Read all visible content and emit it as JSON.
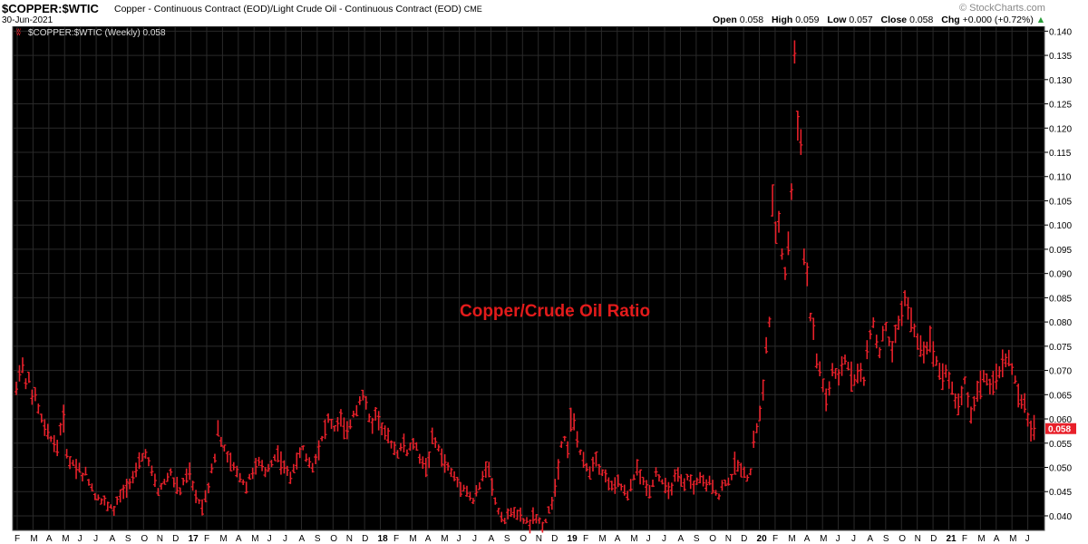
{
  "header": {
    "symbol": "$COPPER:$WTIC",
    "description": "Copper - Continuous Contract (EOD)/Light Crude Oil - Continuous Contract (EOD)",
    "exchange": "CME",
    "date": "30-Jun-2021",
    "copyright": "© StockCharts.com",
    "ohlc": {
      "open_label": "Open",
      "open": "0.058",
      "high_label": "High",
      "high": "0.059",
      "low_label": "Low",
      "low": "0.057",
      "close_label": "Close",
      "close": "0.058",
      "chg_label": "Chg",
      "chg": "+0.000 (+0.72%)"
    }
  },
  "legend": {
    "text": "$COPPER:$WTIC (Weekly) 0.058"
  },
  "colors": {
    "background": "#000000",
    "bars": "#e8202a",
    "grid": "#2a2a2a",
    "axis_text": "#000000",
    "price_tag": "#e8202a"
  },
  "chart_data": {
    "type": "ohlc",
    "title": "",
    "annotation": "Copper/Crude Oil Ratio",
    "timeframe": "Weekly",
    "ylim": [
      0.037,
      0.141
    ],
    "y_ticks": [
      "0.040",
      "0.045",
      "0.050",
      "0.055",
      "0.060",
      "0.065",
      "0.070",
      "0.075",
      "0.080",
      "0.085",
      "0.090",
      "0.095",
      "0.100",
      "0.105",
      "0.110",
      "0.115",
      "0.120",
      "0.125",
      "0.130",
      "0.135",
      "0.140"
    ],
    "x_ticks": [
      "F",
      "M",
      "A",
      "M",
      "J",
      "J",
      "A",
      "S",
      "O",
      "N",
      "D",
      "17",
      "F",
      "M",
      "A",
      "M",
      "J",
      "J",
      "A",
      "S",
      "O",
      "N",
      "D",
      "18",
      "F",
      "M",
      "A",
      "M",
      "J",
      "J",
      "A",
      "S",
      "O",
      "N",
      "D",
      "19",
      "F",
      "M",
      "A",
      "M",
      "J",
      "J",
      "A",
      "S",
      "O",
      "N",
      "D",
      "20",
      "F",
      "M",
      "A",
      "M",
      "J",
      "J",
      "A",
      "S",
      "O",
      "N",
      "D",
      "21",
      "F",
      "M",
      "A",
      "M",
      "J"
    ],
    "year_ticks": [
      "17",
      "18",
      "19",
      "20",
      "21"
    ],
    "x_start": "2016-02",
    "last_value": "0.058",
    "anchors": [
      [
        0.066,
        0.07
      ],
      [
        0.071,
        0.067
      ],
      [
        0.069,
        0.064
      ],
      [
        0.065,
        0.062
      ],
      [
        0.06,
        0.058
      ],
      [
        0.057,
        0.056
      ],
      [
        0.055,
        0.054
      ],
      [
        0.058,
        0.06
      ],
      [
        0.053,
        0.051
      ],
      [
        0.051,
        0.05
      ],
      [
        0.05,
        0.048
      ],
      [
        0.049,
        0.047
      ],
      [
        0.046,
        0.044
      ],
      [
        0.044,
        0.043
      ],
      [
        0.043,
        0.042
      ],
      [
        0.042,
        0.041
      ],
      [
        0.043,
        0.044
      ],
      [
        0.045,
        0.046
      ],
      [
        0.047,
        0.048
      ],
      [
        0.049,
        0.051
      ],
      [
        0.052,
        0.053
      ],
      [
        0.051,
        0.049
      ],
      [
        0.047,
        0.045
      ],
      [
        0.046,
        0.047
      ],
      [
        0.048,
        0.049
      ],
      [
        0.047,
        0.046
      ],
      [
        0.045,
        0.047
      ],
      [
        0.048,
        0.049
      ],
      [
        0.046,
        0.044
      ],
      [
        0.043,
        0.042
      ],
      [
        0.044,
        0.046
      ],
      [
        0.05,
        0.052
      ],
      [
        0.058,
        0.055
      ],
      [
        0.054,
        0.052
      ],
      [
        0.051,
        0.05
      ],
      [
        0.049,
        0.048
      ],
      [
        0.047,
        0.046
      ],
      [
        0.048,
        0.049
      ],
      [
        0.05,
        0.051
      ],
      [
        0.05,
        0.049
      ],
      [
        0.05,
        0.051
      ],
      [
        0.052,
        0.053
      ],
      [
        0.051,
        0.05
      ],
      [
        0.049,
        0.048
      ],
      [
        0.05,
        0.051
      ],
      [
        0.053,
        0.054
      ],
      [
        0.052,
        0.051
      ],
      [
        0.05,
        0.052
      ],
      [
        0.054,
        0.056
      ],
      [
        0.058,
        0.06
      ],
      [
        0.059,
        0.058
      ],
      [
        0.059,
        0.06
      ],
      [
        0.058,
        0.057
      ],
      [
        0.059,
        0.061
      ],
      [
        0.062,
        0.064
      ],
      [
        0.065,
        0.063
      ],
      [
        0.06,
        0.059
      ],
      [
        0.061,
        0.06
      ],
      [
        0.058,
        0.057
      ],
      [
        0.056,
        0.055
      ],
      [
        0.054,
        0.053
      ],
      [
        0.054,
        0.055
      ],
      [
        0.053,
        0.054
      ],
      [
        0.055,
        0.054
      ],
      [
        0.052,
        0.051
      ],
      [
        0.05,
        0.052
      ],
      [
        0.056,
        0.055
      ],
      [
        0.054,
        0.052
      ],
      [
        0.051,
        0.05
      ],
      [
        0.049,
        0.048
      ],
      [
        0.047,
        0.046
      ],
      [
        0.046,
        0.045
      ],
      [
        0.044,
        0.043
      ],
      [
        0.045,
        0.046
      ],
      [
        0.048,
        0.05
      ],
      [
        0.05,
        0.046
      ],
      [
        0.043,
        0.041
      ],
      [
        0.04,
        0.039
      ],
      [
        0.04,
        0.041
      ],
      [
        0.041,
        0.04
      ],
      [
        0.04,
        0.039
      ],
      [
        0.039,
        0.038
      ],
      [
        0.04,
        0.039
      ],
      [
        0.039,
        0.038
      ],
      [
        0.039,
        0.041
      ],
      [
        0.043,
        0.046
      ],
      [
        0.05,
        0.055
      ],
      [
        0.056,
        0.054
      ],
      [
        0.06,
        0.059
      ],
      [
        0.056,
        0.053
      ],
      [
        0.051,
        0.05
      ],
      [
        0.049,
        0.051
      ],
      [
        0.052,
        0.05
      ],
      [
        0.049,
        0.048
      ],
      [
        0.047,
        0.046
      ],
      [
        0.046,
        0.047
      ],
      [
        0.046,
        0.045
      ],
      [
        0.044,
        0.046
      ],
      [
        0.048,
        0.05
      ],
      [
        0.048,
        0.047
      ],
      [
        0.046,
        0.045
      ],
      [
        0.047,
        0.049
      ],
      [
        0.048,
        0.047
      ],
      [
        0.046,
        0.045
      ],
      [
        0.046,
        0.048
      ],
      [
        0.048,
        0.047
      ],
      [
        0.046,
        0.048
      ],
      [
        0.047,
        0.046
      ],
      [
        0.047,
        0.048
      ],
      [
        0.047,
        0.046
      ],
      [
        0.047,
        0.046
      ],
      [
        0.045,
        0.044
      ],
      [
        0.046,
        0.047
      ],
      [
        0.047,
        0.048
      ],
      [
        0.051,
        0.05
      ],
      [
        0.05,
        0.049
      ],
      [
        0.048,
        0.049
      ],
      [
        0.056,
        0.058
      ],
      [
        0.061,
        0.066
      ],
      [
        0.075,
        0.08
      ],
      [
        0.104,
        0.098
      ],
      [
        0.101,
        0.094
      ],
      [
        0.09,
        0.096
      ],
      [
        0.107,
        0.135
      ],
      [
        0.121,
        0.118
      ],
      [
        0.093,
        0.09
      ],
      [
        0.081,
        0.078
      ],
      [
        0.072,
        0.07
      ],
      [
        0.067,
        0.064
      ],
      [
        0.066,
        0.07
      ],
      [
        0.069,
        0.068
      ],
      [
        0.071,
        0.072
      ],
      [
        0.071,
        0.069
      ],
      [
        0.068,
        0.07
      ],
      [
        0.069,
        0.068
      ],
      [
        0.074,
        0.077
      ],
      [
        0.08,
        0.076
      ],
      [
        0.074,
        0.077
      ],
      [
        0.079,
        0.076
      ],
      [
        0.074,
        0.077
      ],
      [
        0.08,
        0.082
      ],
      [
        0.085,
        0.083
      ],
      [
        0.08,
        0.078
      ],
      [
        0.076,
        0.075
      ],
      [
        0.074,
        0.075
      ],
      [
        0.076,
        0.074
      ],
      [
        0.072,
        0.07
      ],
      [
        0.069,
        0.07
      ],
      [
        0.068,
        0.066
      ],
      [
        0.064,
        0.063
      ],
      [
        0.065,
        0.068
      ],
      [
        0.064,
        0.061
      ],
      [
        0.063,
        0.066
      ],
      [
        0.067,
        0.069
      ],
      [
        0.068,
        0.066
      ],
      [
        0.067,
        0.069
      ],
      [
        0.07,
        0.071
      ],
      [
        0.072,
        0.073
      ],
      [
        0.07,
        0.068
      ],
      [
        0.065,
        0.063
      ],
      [
        0.063,
        0.06
      ],
      [
        0.058,
        0.058
      ]
    ]
  }
}
